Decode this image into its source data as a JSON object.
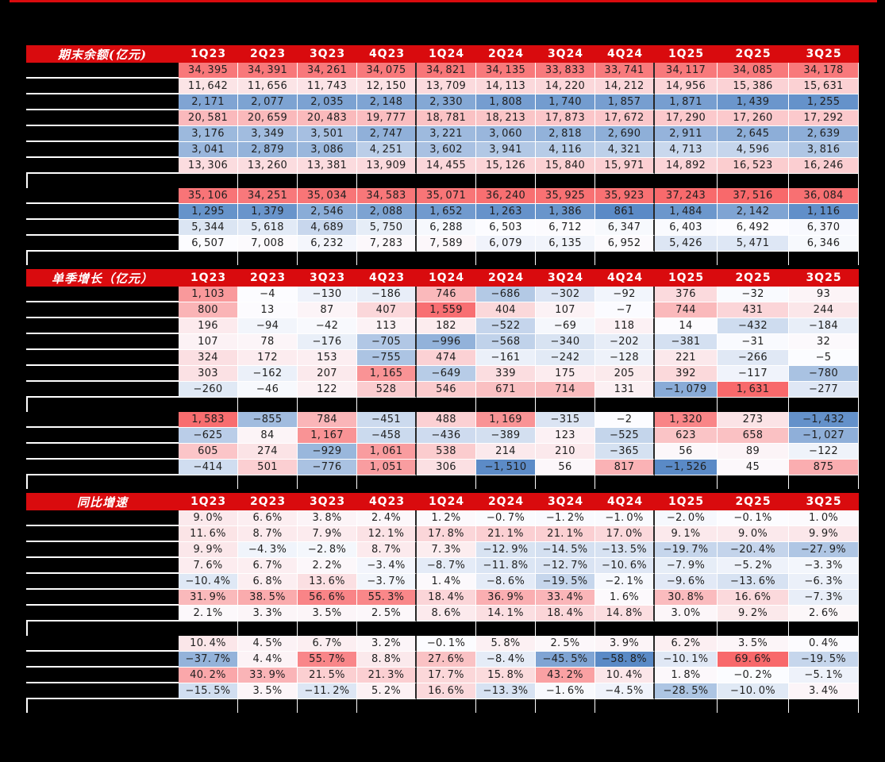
{
  "page": {
    "background": "#000000",
    "accent_red": "#D90B0E",
    "text_color": "#1F1F1F",
    "grid_line_color": "#FFFFFF",
    "year_separator_color": "#262626",
    "row_labels_redacted": true,
    "title_area_redacted": true
  },
  "chart_data": {
    "type": "table",
    "subtype": "heatmap_conditional_formatting",
    "legend_position": "none",
    "grid": true,
    "columns": [
      "1Q23",
      "2Q23",
      "3Q23",
      "4Q23",
      "1Q24",
      "2Q24",
      "3Q24",
      "4Q24",
      "1Q25",
      "2Q25",
      "3Q25"
    ],
    "row_labels_redacted": true,
    "year_group_separators_after": [
      "4Q23",
      "4Q24"
    ],
    "colorscale": {
      "min_color": "#5A8AC6",
      "mid_color": "#FCFCFF",
      "max_color": "#F8696B"
    },
    "sections": [
      {
        "title": "期末余额(亿元)",
        "value_format": "thousands",
        "heat_mid": "median",
        "blocks": [
          [
            [
              34395,
              34391,
              34261,
              34075,
              34821,
              34135,
              33833,
              33741,
              34117,
              34085,
              34178
            ],
            [
              11642,
              11656,
              11743,
              12150,
              13709,
              14113,
              14220,
              14212,
              14956,
              15386,
              15631
            ],
            [
              2171,
              2077,
              2035,
              2148,
              2330,
              1808,
              1740,
              1857,
              1871,
              1439,
              1255
            ],
            [
              20581,
              20659,
              20483,
              19777,
              18781,
              18213,
              17873,
              17672,
              17290,
              17260,
              17292
            ],
            [
              3176,
              3349,
              3501,
              2747,
              3221,
              3060,
              2818,
              2690,
              2911,
              2645,
              2639
            ],
            [
              3041,
              2879,
              3086,
              4251,
              3602,
              3941,
              4116,
              4321,
              4713,
              4596,
              3816
            ],
            [
              13306,
              13260,
              13381,
              13909,
              14455,
              15126,
              15840,
              15971,
              14892,
              16523,
              16246
            ]
          ],
          [
            [
              35106,
              34251,
              35034,
              34583,
              35071,
              36240,
              35925,
              35923,
              37243,
              37516,
              36084
            ],
            [
              1295,
              1379,
              2546,
              2088,
              1652,
              1263,
              1386,
              861,
              1484,
              2142,
              1116
            ],
            [
              5344,
              5618,
              4689,
              5750,
              6288,
              6503,
              6712,
              6347,
              6403,
              6492,
              6370
            ],
            [
              6507,
              7008,
              6232,
              7283,
              7589,
              6079,
              6135,
              6952,
              5426,
              5471,
              6346
            ]
          ]
        ]
      },
      {
        "title": "单季增长（亿元）",
        "value_format": "thousands",
        "heat_mid": 0,
        "blocks": [
          [
            [
              1103,
              -4,
              -130,
              -186,
              746,
              -686,
              -302,
              -92,
              376,
              -32,
              93
            ],
            [
              800,
              13,
              87,
              407,
              1559,
              404,
              107,
              -7,
              744,
              431,
              244
            ],
            [
              196,
              -94,
              -42,
              113,
              182,
              -522,
              -69,
              118,
              14,
              -432,
              -184
            ],
            [
              107,
              78,
              -176,
              -705,
              -996,
              -568,
              -340,
              -202,
              -381,
              -31,
              32
            ],
            [
              324,
              172,
              153,
              -755,
              474,
              -161,
              -242,
              -128,
              221,
              -266,
              -5
            ],
            [
              303,
              -162,
              207,
              1165,
              -649,
              339,
              175,
              205,
              392,
              -117,
              -780
            ],
            [
              -260,
              -46,
              122,
              528,
              546,
              671,
              714,
              131,
              -1079,
              1631,
              -277
            ]
          ],
          [
            [
              1583,
              -855,
              784,
              -451,
              488,
              1169,
              -315,
              -2,
              1320,
              273,
              -1432
            ],
            [
              -625,
              84,
              1167,
              -458,
              -436,
              -389,
              123,
              -525,
              623,
              658,
              -1027
            ],
            [
              605,
              274,
              -929,
              1061,
              538,
              214,
              210,
              -365,
              56,
              89,
              -122
            ],
            [
              -414,
              501,
              -776,
              1051,
              306,
              -1510,
              56,
              817,
              -1526,
              45,
              875
            ]
          ]
        ]
      },
      {
        "title": "同比增速",
        "value_format": "percent1",
        "heat_mid": 0,
        "blocks": [
          [
            [
              9.0,
              6.6,
              3.8,
              2.4,
              1.2,
              -0.7,
              -1.2,
              -1.0,
              -2.0,
              -0.1,
              1.0
            ],
            [
              11.6,
              8.7,
              7.9,
              12.1,
              17.8,
              21.1,
              21.1,
              17.0,
              9.1,
              9.0,
              9.9
            ],
            [
              9.9,
              -4.3,
              -2.8,
              8.7,
              7.3,
              -12.9,
              -14.5,
              -13.5,
              -19.7,
              -20.4,
              -27.9
            ],
            [
              7.6,
              6.7,
              2.2,
              -3.4,
              -8.7,
              -11.8,
              -12.7,
              -10.6,
              -7.9,
              -5.2,
              -3.3
            ],
            [
              -10.4,
              6.8,
              13.6,
              -3.7,
              1.4,
              -8.6,
              -19.5,
              -2.1,
              -9.6,
              -13.6,
              -6.3
            ],
            [
              31.9,
              38.5,
              56.6,
              55.3,
              18.4,
              36.9,
              33.4,
              1.6,
              30.8,
              16.6,
              -7.3
            ],
            [
              2.1,
              3.3,
              3.5,
              2.5,
              8.6,
              14.1,
              18.4,
              14.8,
              3.0,
              9.2,
              2.6
            ]
          ],
          [
            [
              10.4,
              4.5,
              6.7,
              3.2,
              -0.1,
              5.8,
              2.5,
              3.9,
              6.2,
              3.5,
              0.4
            ],
            [
              -37.7,
              4.4,
              55.7,
              8.8,
              27.6,
              -8.4,
              -45.5,
              -58.8,
              -10.1,
              69.6,
              -19.5
            ],
            [
              40.2,
              33.9,
              21.5,
              21.3,
              17.7,
              15.8,
              43.2,
              10.4,
              1.8,
              -0.2,
              -5.1
            ],
            [
              -15.5,
              3.5,
              -11.2,
              5.2,
              16.6,
              -13.3,
              -1.6,
              -4.5,
              -28.5,
              -10.0,
              3.4
            ]
          ]
        ]
      }
    ]
  }
}
